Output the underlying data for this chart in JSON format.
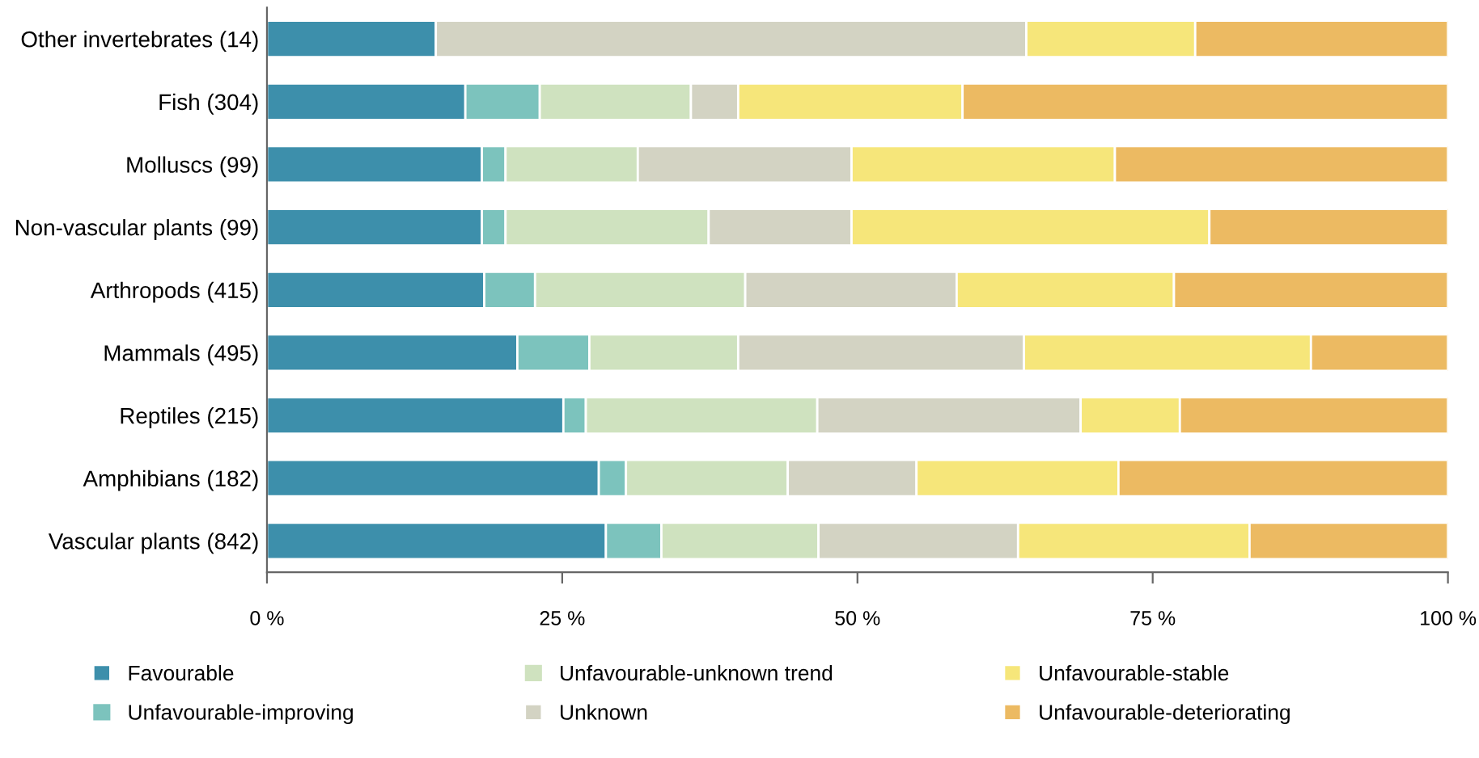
{
  "chart_data": {
    "type": "bar",
    "orientation": "horizontal",
    "stacked": true,
    "categories": [
      "Other invertebrates (14)",
      "Fish (304)",
      "Molluscs (99)",
      "Non-vascular plants (99)",
      "Arthropods (415)",
      "Mammals (495)",
      "Reptiles (215)",
      "Amphibians (182)",
      "Vascular plants (842)"
    ],
    "series": [
      {
        "name": "Favourable",
        "color": "#3d8fab",
        "values": [
          14.3,
          16.8,
          18.2,
          18.2,
          18.4,
          21.2,
          25.1,
          28.1,
          28.7
        ]
      },
      {
        "name": "Unfavourable-improving",
        "color": "#7cc3bd",
        "values": [
          0,
          6.3,
          2.0,
          2.0,
          4.3,
          6.1,
          1.9,
          2.3,
          4.7
        ]
      },
      {
        "name": "Unfavourable-unknown trend",
        "color": "#cfe2bf",
        "values": [
          0,
          12.8,
          11.2,
          17.2,
          17.8,
          12.6,
          19.6,
          13.7,
          13.3
        ]
      },
      {
        "name": "Unknown",
        "color": "#d3d3c3",
        "values": [
          50,
          4.0,
          18.1,
          12.1,
          17.9,
          24.2,
          22.3,
          10.9,
          16.9
        ]
      },
      {
        "name": "Unfavourable-stable",
        "color": "#f6e67a",
        "values": [
          14.3,
          19.0,
          22.3,
          30.3,
          18.4,
          24.3,
          8.4,
          17.1,
          19.6
        ]
      },
      {
        "name": "Unfavourable-deteriorating",
        "color": "#ecba62",
        "values": [
          21.4,
          41.1,
          28.2,
          20.2,
          23.2,
          11.6,
          22.7,
          27.9,
          16.8
        ]
      }
    ],
    "xlim": [
      0,
      100
    ],
    "xticks": [
      {
        "value": 0,
        "label": "0 %"
      },
      {
        "value": 25,
        "label": "25 %"
      },
      {
        "value": 50,
        "label": "50 %"
      },
      {
        "value": 75,
        "label": "75 %"
      },
      {
        "value": 100,
        "label": "100 %"
      }
    ],
    "grid": false,
    "legend": "bottom"
  }
}
